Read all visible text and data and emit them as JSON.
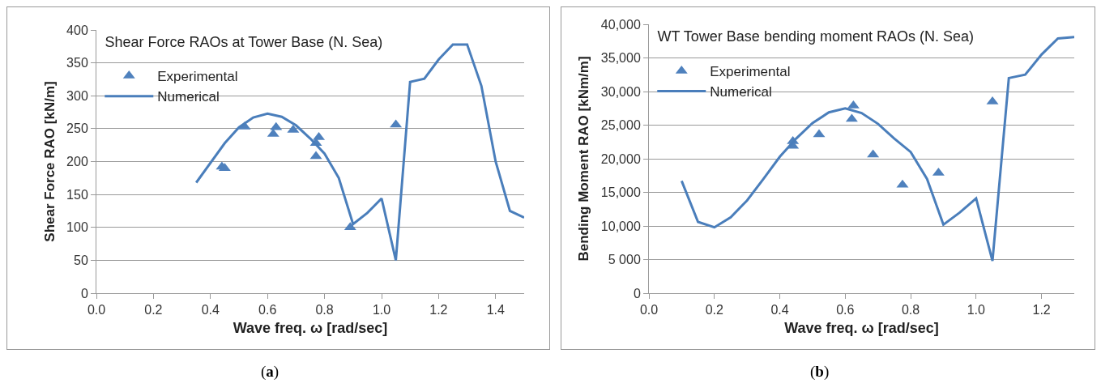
{
  "chart_data": [
    {
      "type": "line",
      "title": "Shear Force RAOs at Tower Base (N. Sea)",
      "xlabel": "Wave freq. ω [rad/sec]",
      "ylabel": "Shear Force RAO [kN/m]",
      "xlim": [
        0,
        1.5
      ],
      "xticks": [
        {
          "value": 0,
          "label": "0.0"
        },
        {
          "value": 0.2,
          "label": "0.2"
        },
        {
          "value": 0.4,
          "label": "0.4"
        },
        {
          "value": 0.6,
          "label": "0.6"
        },
        {
          "value": 0.8,
          "label": "0.8"
        },
        {
          "value": 1,
          "label": "1.0"
        },
        {
          "value": 1.2,
          "label": "1.2"
        },
        {
          "value": 1.4,
          "label": "1.4"
        }
      ],
      "ylim": [
        0,
        400
      ],
      "yticks": [
        0,
        50,
        100,
        150,
        200,
        250,
        300,
        350,
        400
      ],
      "grid": "y",
      "legend": "top left",
      "annotations": [
        "(a)"
      ],
      "series": [
        {
          "name": "Experimental",
          "type": "scatter",
          "marker": "triangle",
          "color": "#4f81bd",
          "x": [
            0.44,
            0.45,
            0.52,
            0.62,
            0.63,
            0.69,
            0.77,
            0.78,
            0.77,
            0.89,
            1.05
          ],
          "values": [
            192,
            190,
            253,
            242,
            252,
            248,
            228,
            237,
            208,
            100,
            256
          ]
        },
        {
          "name": "Numerical",
          "line_style": "solid",
          "color": "#4a7ebb",
          "x": [
            0.35,
            0.45,
            0.5,
            0.55,
            0.6,
            0.65,
            0.7,
            0.75,
            0.8,
            0.85,
            0.9,
            0.95,
            1.0,
            1.05,
            1.1,
            1.15,
            1.2,
            1.25,
            1.3,
            1.35,
            1.4,
            1.45,
            1.5
          ],
          "values": [
            168,
            228,
            252,
            267,
            273,
            268,
            255,
            235,
            212,
            175,
            105,
            122,
            144,
            50,
            321,
            326,
            355,
            378,
            378,
            315,
            200,
            125,
            115
          ]
        }
      ]
    },
    {
      "type": "line",
      "title": "WT Tower Base bending moment RAOs (N. Sea)",
      "xlabel": "Wave freq. ω [rad/sec]",
      "ylabel": "Bending Moment RAO [kNm/m]",
      "xlim": [
        0,
        1.3
      ],
      "xticks": [
        {
          "value": 0,
          "label": "0.0"
        },
        {
          "value": 0.2,
          "label": "0.2"
        },
        {
          "value": 0.4,
          "label": "0.4"
        },
        {
          "value": 0.6,
          "label": "0.6"
        },
        {
          "value": 0.8,
          "label": "0.8"
        },
        {
          "value": 1,
          "label": "1.0"
        },
        {
          "value": 1.2,
          "label": "1.2"
        }
      ],
      "ylim": [
        0,
        40000
      ],
      "yticks": [
        0,
        {
          "value": 5000,
          "label": "5 000"
        },
        {
          "value": 10000,
          "label": "10,000"
        },
        {
          "value": 15000,
          "label": "15,000"
        },
        {
          "value": 20000,
          "label": "20,000"
        },
        {
          "value": 25000,
          "label": "25,000"
        },
        {
          "value": 30000,
          "label": "30,000"
        },
        {
          "value": 35000,
          "label": "35,000"
        },
        {
          "value": 40000,
          "label": "40,000"
        }
      ],
      "grid": "y",
      "legend": "top left",
      "annotations": [
        "(b)"
      ],
      "series": [
        {
          "name": "Experimental",
          "type": "scatter",
          "marker": "triangle",
          "color": "#4f81bd",
          "x": [
            0.44,
            0.44,
            0.52,
            0.62,
            0.625,
            0.685,
            0.775,
            0.885,
            1.05
          ],
          "values": [
            21900,
            22600,
            23600,
            25900,
            27900,
            20600,
            16100,
            17900,
            28500
          ]
        },
        {
          "name": "Numerical",
          "line_style": "solid",
          "color": "#4a7ebb",
          "x": [
            0.1,
            0.15,
            0.2,
            0.25,
            0.3,
            0.35,
            0.4,
            0.45,
            0.5,
            0.55,
            0.6,
            0.65,
            0.7,
            0.75,
            0.8,
            0.85,
            0.9,
            0.95,
            1.0,
            1.05,
            1.1,
            1.15,
            1.2,
            1.25,
            1.3
          ],
          "values": [
            16700,
            10600,
            9800,
            11300,
            13800,
            17000,
            20300,
            23000,
            25300,
            26900,
            27500,
            26800,
            25200,
            23000,
            21000,
            17000,
            10200,
            12000,
            14100,
            4800,
            32000,
            32500,
            35500,
            37900,
            38100
          ]
        }
      ]
    }
  ]
}
